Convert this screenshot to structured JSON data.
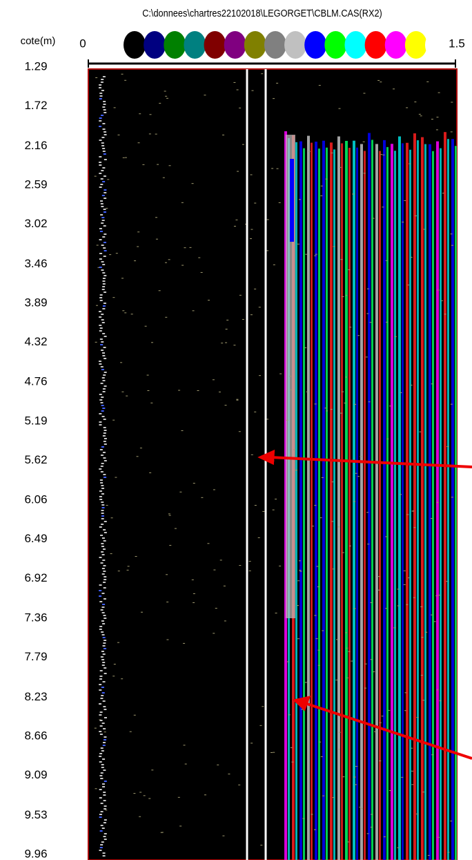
{
  "chart_data": {
    "type": "log-image",
    "title": "C:\\donnees\\chartres22102018\\LEGORGET\\CBLM.CAS(RX2)",
    "y_label": "cote(m)",
    "ylim": [
      1.29,
      9.96
    ],
    "yticks": [
      1.29,
      1.72,
      2.16,
      2.59,
      3.02,
      3.46,
      3.89,
      4.32,
      4.76,
      5.19,
      5.62,
      6.06,
      6.49,
      6.92,
      7.36,
      7.79,
      8.23,
      8.66,
      9.09,
      9.53,
      9.96
    ],
    "colorbar": {
      "lim": [
        0,
        1.5
      ],
      "ticks": [
        0,
        1.5
      ],
      "colors": [
        "#000000",
        "#000080",
        "#008000",
        "#008080",
        "#800000",
        "#800080",
        "#808000",
        "#808080",
        "#c0c0c0",
        "#0000ff",
        "#00ff00",
        "#00ffff",
        "#ff0000",
        "#ff00ff",
        "#ffff00",
        "#ffffff"
      ]
    }
  }
}
